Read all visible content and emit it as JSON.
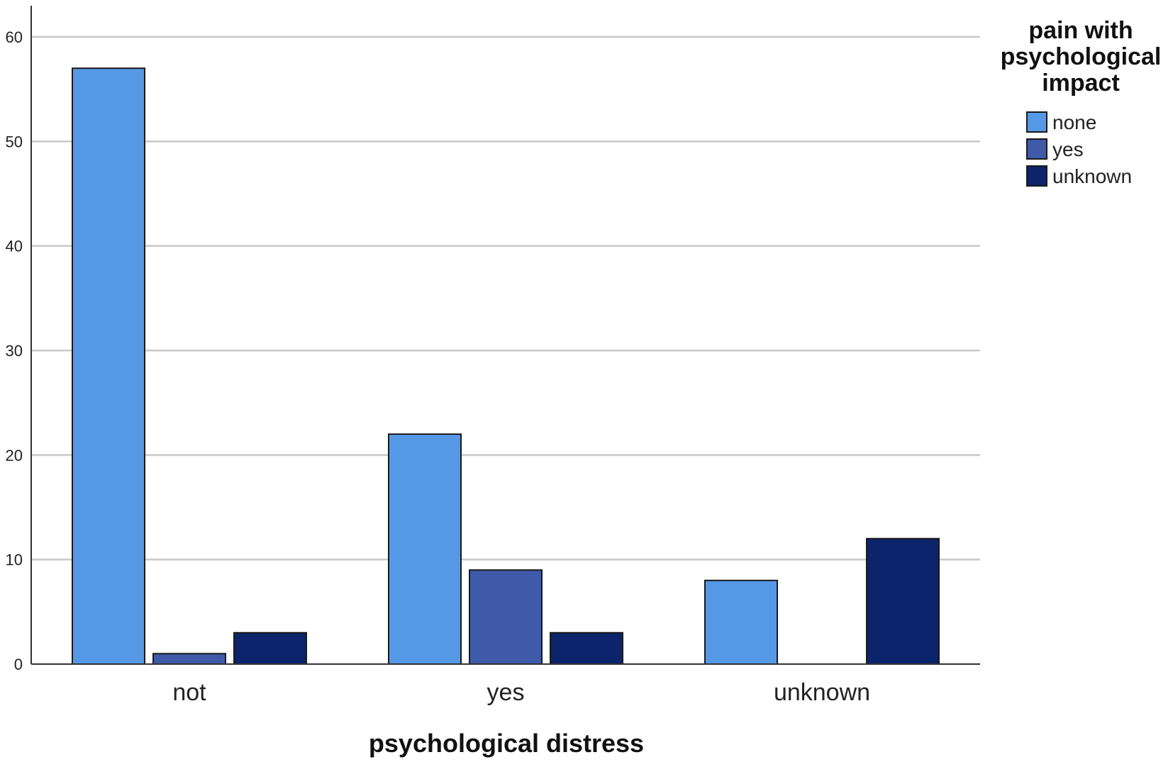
{
  "chart_data": {
    "type": "bar",
    "xlabel": "psychological distress",
    "ylabel": "",
    "categories": [
      "not",
      "yes",
      "unknown"
    ],
    "series": [
      {
        "name": "none",
        "color": "#5599e6",
        "values": [
          57,
          22,
          8
        ]
      },
      {
        "name": "yes",
        "color": "#3f5aa8",
        "values": [
          1,
          9,
          0
        ]
      },
      {
        "name": "unknown",
        "color": "#0b246b",
        "values": [
          3,
          3,
          12
        ]
      }
    ],
    "ylim": [
      0,
      60
    ],
    "yticks": [
      0,
      10,
      20,
      30,
      40,
      50,
      60
    ],
    "grid": true,
    "legend": {
      "title_lines": [
        "pain with",
        "psychological",
        "impact"
      ],
      "placement": "top-right"
    }
  }
}
